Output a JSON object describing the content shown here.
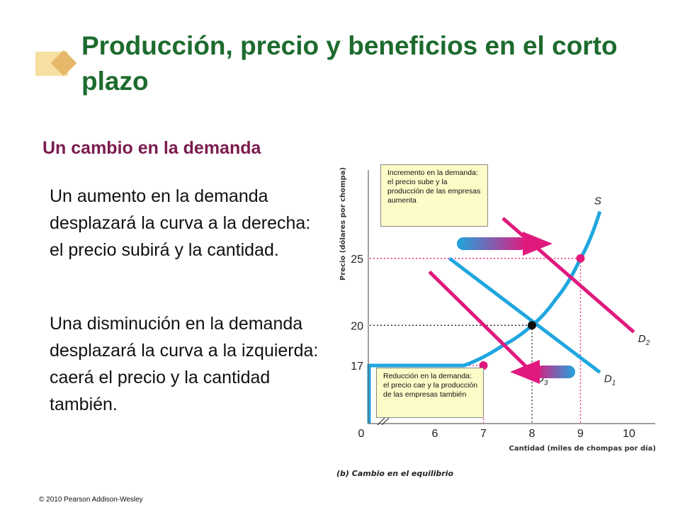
{
  "title": "Producción, precio y beneficios en el corto plazo",
  "subtitle": "Un cambio en la demanda",
  "paragraphs": [
    "Un aumento en la demanda desplazará la curva a la derecha: el precio subirá y la cantidad.",
    "Una disminución en la demanda desplazará la curva a la izquierda: caerá el precio y la cantidad también."
  ],
  "copyright": "© 2010 Pearson Addison-Wesley",
  "colors": {
    "title": "#1d6b2e",
    "subtitle": "#7a1b4f",
    "supply": "#1fa6df",
    "demand_shift": "#e0197d",
    "note_bg": "#fdfbc8"
  },
  "chart_data": {
    "type": "line",
    "ylabel": "Precio (dólares por chompa)",
    "xlabel": "Cantidad (miles de chompas por día)",
    "caption": "(b) Cambio en el equilibrio",
    "x_ticks": [
      "0",
      "6",
      "7",
      "8",
      "9",
      "10"
    ],
    "y_ticks": [
      "17",
      "20",
      "25"
    ],
    "xlim": [
      0,
      10.5
    ],
    "ylim": [
      0,
      29
    ],
    "series": [
      {
        "name": "S",
        "points": [
          [
            0,
            0
          ],
          [
            0,
            17
          ],
          [
            6.6,
            17
          ],
          [
            7.4,
            18.5
          ],
          [
            8,
            20
          ],
          [
            8.5,
            22
          ],
          [
            9,
            25
          ],
          [
            9.4,
            28.5
          ]
        ]
      },
      {
        "name": "D",
        "sub": "1",
        "points": [
          [
            6.3,
            25
          ],
          [
            9.4,
            15
          ]
        ]
      },
      {
        "name": "D",
        "sub": "2",
        "points": [
          [
            7.4,
            28
          ],
          [
            10.1,
            19.5
          ]
        ]
      },
      {
        "name": "D",
        "sub": "3",
        "points": [
          [
            5.5,
            24
          ],
          [
            8,
            15
          ]
        ]
      }
    ],
    "equilibria": [
      {
        "x": 8,
        "y": 20,
        "kind": "initial"
      },
      {
        "x": 9,
        "y": 25,
        "kind": "increase"
      },
      {
        "x": 7,
        "y": 17,
        "kind": "decrease"
      }
    ],
    "annotations": [
      "Incremento en la demanda: el precio sube  y la producción de las empresas aumenta",
      "Reducción en la demanda: el precio cae y la producción de las empresas también"
    ]
  }
}
